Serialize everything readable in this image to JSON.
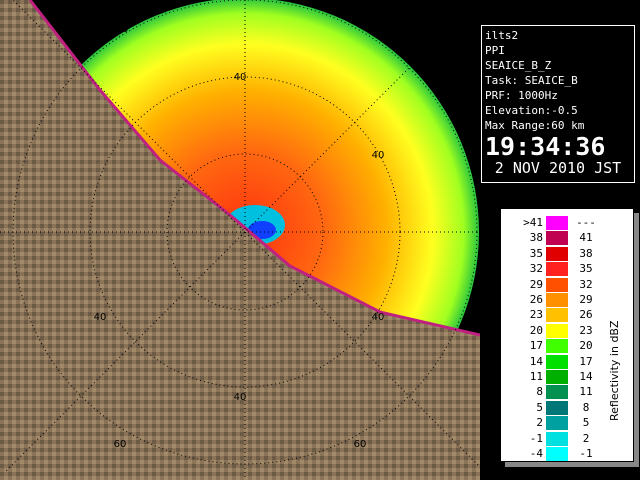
{
  "info": {
    "lines": [
      "ilts2",
      "PPI",
      "SEAICE_B_Z",
      "Task: SEAICE_B",
      "PRF: 1000Hz",
      "Elevation:-0.5",
      "Max Range:60 km"
    ],
    "time": "19:34:36",
    "date": "2 NOV 2010 JST"
  },
  "legend": {
    "title": "Reflectivity in dBZ",
    "rows": [
      {
        "low": ">41",
        "high": "---",
        "color": "#ff00ff"
      },
      {
        "low": "38",
        "high": "41",
        "color": "#c00050"
      },
      {
        "low": "35",
        "high": "38",
        "color": "#e00000"
      },
      {
        "low": "32",
        "high": "35",
        "color": "#ff2020"
      },
      {
        "low": "29",
        "high": "32",
        "color": "#ff5000"
      },
      {
        "low": "26",
        "high": "29",
        "color": "#ff9000"
      },
      {
        "low": "23",
        "high": "26",
        "color": "#ffc000"
      },
      {
        "low": "20",
        "high": "23",
        "color": "#ffff00"
      },
      {
        "low": "17",
        "high": "20",
        "color": "#40ff00"
      },
      {
        "low": "14",
        "high": "17",
        "color": "#00e000"
      },
      {
        "low": "11",
        "high": "14",
        "color": "#00b000"
      },
      {
        "low": "8",
        "high": "11",
        "color": "#009050"
      },
      {
        "low": "5",
        "high": "8",
        "color": "#007878"
      },
      {
        "low": "2",
        "high": "5",
        "color": "#00a0a0"
      },
      {
        "low": "-1",
        "high": "2",
        "color": "#00e0e0"
      },
      {
        "low": "-4",
        "high": "-1",
        "color": "#00ffff"
      }
    ]
  },
  "range_labels": [
    "60",
    "40",
    "40",
    "40",
    "40",
    "60",
    "60",
    "40"
  ]
}
